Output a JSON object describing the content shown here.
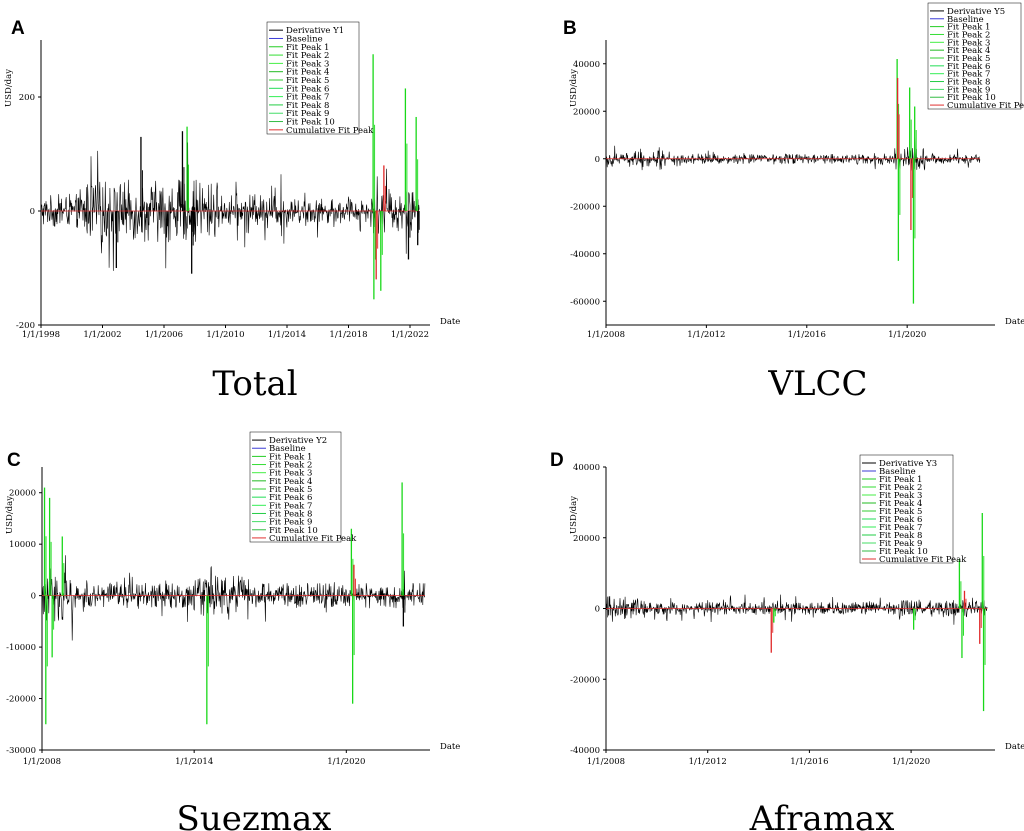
{
  "chart_data": [
    {
      "type": "line",
      "panel_letter": "A",
      "caption": "Total",
      "ylabel": "USD/day",
      "xlabel": "Date",
      "x_range": [
        1998.0,
        2023.3
      ],
      "ylim": [
        -200,
        300
      ],
      "y_ticks": [
        -200,
        0,
        200
      ],
      "x_ticks": [
        {
          "value": 1998,
          "label": "1/1/1998"
        },
        {
          "value": 2002,
          "label": "1/1/2002"
        },
        {
          "value": 2006,
          "label": "1/1/2006"
        },
        {
          "value": 2010,
          "label": "1/1/2010"
        },
        {
          "value": 2014,
          "label": "1/1/2014"
        },
        {
          "value": 2018,
          "label": "1/1/2018"
        },
        {
          "value": 2022,
          "label": "1/1/2022"
        }
      ],
      "legend": [
        "Derivative Y1",
        "Baseline",
        "Fit Peak 1",
        "Fit Peak 2",
        "Fit Peak 3",
        "Fit Peak 4",
        "Fit Peak 5",
        "Fit Peak 6",
        "Fit Peak 7",
        "Fit Peak 8",
        "Fit Peak 9",
        "Fit Peak 10",
        "Cumulative Fit Peak"
      ],
      "series_colors": [
        "#000000",
        "#3b3bd6",
        "#22cc22",
        "#33dd33",
        "#44ee44",
        "#22bb22",
        "#33cc33",
        "#22dd55",
        "#33ee55",
        "#22cc44",
        "#44dd66",
        "#33bb44",
        "#e03030"
      ],
      "data_end": 2022.6,
      "noise_segments": [
        {
          "start": 1998.0,
          "end": 2000.5,
          "amp": 30
        },
        {
          "start": 2000.5,
          "end": 2009.5,
          "amp": 55
        },
        {
          "start": 2009.5,
          "end": 2014.0,
          "amp": 30
        },
        {
          "start": 2014.0,
          "end": 2019.5,
          "amp": 22
        },
        {
          "start": 2019.5,
          "end": 2022.6,
          "amp": 40
        }
      ],
      "peaks": [
        {
          "x": 2007.5,
          "y": 148,
          "color": "green"
        },
        {
          "x": 2007.2,
          "y": 140,
          "color": "black"
        },
        {
          "x": 2004.5,
          "y": 130,
          "color": "black"
        },
        {
          "x": 2007.8,
          "y": -110,
          "color": "black"
        },
        {
          "x": 2002.9,
          "y": -100,
          "color": "black"
        },
        {
          "x": 2019.6,
          "y": 275,
          "color": "green"
        },
        {
          "x": 2019.65,
          "y": -155,
          "color": "green"
        },
        {
          "x": 2019.8,
          "y": -120,
          "color": "red"
        },
        {
          "x": 2020.1,
          "y": -140,
          "color": "green"
        },
        {
          "x": 2020.3,
          "y": 80,
          "color": "red"
        },
        {
          "x": 2021.7,
          "y": 215,
          "color": "green"
        },
        {
          "x": 2021.9,
          "y": -85,
          "color": "black"
        },
        {
          "x": 2022.4,
          "y": 165,
          "color": "green"
        },
        {
          "x": 2022.5,
          "y": -60,
          "color": "black"
        }
      ]
    },
    {
      "type": "line",
      "panel_letter": "B",
      "caption": "VLCC",
      "ylabel": "USD/day",
      "xlabel": "Date",
      "x_range": [
        2008.0,
        2023.5
      ],
      "ylim": [
        -70000,
        50000
      ],
      "y_ticks": [
        -60000,
        -40000,
        -20000,
        0,
        20000,
        40000
      ],
      "x_ticks": [
        {
          "value": 2008,
          "label": "1/1/2008"
        },
        {
          "value": 2012,
          "label": "1/1/2012"
        },
        {
          "value": 2016,
          "label": "1/1/2016"
        },
        {
          "value": 2020,
          "label": "1/1/2020"
        }
      ],
      "legend": [
        "Derivative Y5",
        "Baseline",
        "Fit Peak 1",
        "Fit Peak 2",
        "Fit Peak 3",
        "Fit Peak 4",
        "Fit Peak 5",
        "Fit Peak 6",
        "Fit Peak 7",
        "Fit Peak 8",
        "Fit Peak 9",
        "Fit Peak 10",
        "Cumulative Fit Peak"
      ],
      "series_colors": [
        "#000000",
        "#3b3bd6",
        "#22cc22",
        "#33dd33",
        "#44ee44",
        "#22bb22",
        "#33cc33",
        "#22dd55",
        "#33ee55",
        "#22cc44",
        "#44dd66",
        "#33bb44",
        "#e03030"
      ],
      "data_end": 2022.9,
      "noise_segments": [
        {
          "start": 2008.0,
          "end": 2011.0,
          "amp": 3500
        },
        {
          "start": 2011.0,
          "end": 2019.5,
          "amp": 2200
        },
        {
          "start": 2019.5,
          "end": 2020.7,
          "amp": 5000
        },
        {
          "start": 2020.7,
          "end": 2022.9,
          "amp": 2200
        }
      ],
      "peaks": [
        {
          "x": 2019.6,
          "y": 42000,
          "color": "green"
        },
        {
          "x": 2019.62,
          "y": 34000,
          "color": "red"
        },
        {
          "x": 2019.65,
          "y": -43000,
          "color": "green"
        },
        {
          "x": 2020.1,
          "y": 30000,
          "color": "green"
        },
        {
          "x": 2020.15,
          "y": -30000,
          "color": "red"
        },
        {
          "x": 2020.25,
          "y": -61000,
          "color": "green"
        },
        {
          "x": 2020.3,
          "y": 22000,
          "color": "green"
        }
      ]
    },
    {
      "type": "line",
      "panel_letter": "C",
      "caption": "Suezmax",
      "ylabel": "USD/day",
      "xlabel": "Date",
      "x_range": [
        2008.0,
        2023.3
      ],
      "ylim": [
        -30000,
        25000
      ],
      "y_ticks": [
        -30000,
        -20000,
        -10000,
        0,
        10000,
        20000
      ],
      "x_ticks": [
        {
          "value": 2008,
          "label": "1/1/2008"
        },
        {
          "value": 2014,
          "label": "1/1/2014"
        },
        {
          "value": 2020,
          "label": "1/1/2020"
        }
      ],
      "legend": [
        "Derivative Y2",
        "Baseline",
        "Fit Peak 1",
        "Fit Peak 2",
        "Fit Peak 3",
        "Fit Peak 4",
        "Fit Peak 5",
        "Fit Peak 6",
        "Fit Peak 7",
        "Fit Peak 8",
        "Fit Peak 9",
        "Fit Peak 10",
        "Cumulative Fit Peak"
      ],
      "series_colors": [
        "#000000",
        "#3b3bd6",
        "#22cc22",
        "#33dd33",
        "#44ee44",
        "#22bb22",
        "#33cc33",
        "#22dd55",
        "#33ee55",
        "#22cc44",
        "#44dd66",
        "#33bb44",
        "#e03030"
      ],
      "data_end": 2023.1,
      "noise_segments": [
        {
          "start": 2008.0,
          "end": 2009.3,
          "amp": 5000
        },
        {
          "start": 2009.3,
          "end": 2014.0,
          "amp": 2500
        },
        {
          "start": 2014.0,
          "end": 2016.0,
          "amp": 4000
        },
        {
          "start": 2016.0,
          "end": 2023.1,
          "amp": 2500
        }
      ],
      "peaks": [
        {
          "x": 2008.1,
          "y": 21000,
          "color": "green"
        },
        {
          "x": 2008.15,
          "y": -25000,
          "color": "green"
        },
        {
          "x": 2008.3,
          "y": 19000,
          "color": "green"
        },
        {
          "x": 2008.4,
          "y": -12000,
          "color": "green"
        },
        {
          "x": 2008.8,
          "y": 11500,
          "color": "green"
        },
        {
          "x": 2014.5,
          "y": -25000,
          "color": "green"
        },
        {
          "x": 2020.2,
          "y": 13000,
          "color": "green"
        },
        {
          "x": 2020.25,
          "y": -21000,
          "color": "green"
        },
        {
          "x": 2020.3,
          "y": 6000,
          "color": "red"
        },
        {
          "x": 2022.2,
          "y": 22000,
          "color": "green"
        },
        {
          "x": 2022.25,
          "y": -6000,
          "color": "black"
        }
      ]
    },
    {
      "type": "line",
      "panel_letter": "D",
      "caption": "Aframax",
      "ylabel": "USD/day",
      "xlabel": "Date",
      "x_range": [
        2008.0,
        2023.3
      ],
      "ylim": [
        -40000,
        40000
      ],
      "y_ticks": [
        -40000,
        -20000,
        0,
        20000,
        40000
      ],
      "x_ticks": [
        {
          "value": 2008,
          "label": "1/1/2008"
        },
        {
          "value": 2012,
          "label": "1/1/2012"
        },
        {
          "value": 2016,
          "label": "1/1/2016"
        },
        {
          "value": 2020,
          "label": "1/1/2020"
        }
      ],
      "legend": [
        "Derivative Y3",
        "Baseline",
        "Fit Peak 1",
        "Fit Peak 2",
        "Fit Peak 3",
        "Fit Peak 4",
        "Fit Peak 5",
        "Fit Peak 6",
        "Fit Peak 7",
        "Fit Peak 8",
        "Fit Peak 9",
        "Fit Peak 10",
        "Cumulative Fit Peak"
      ],
      "series_colors": [
        "#000000",
        "#3b3bd6",
        "#22cc22",
        "#33dd33",
        "#44ee44",
        "#22bb22",
        "#33cc33",
        "#22dd55",
        "#33ee55",
        "#22cc44",
        "#44dd66",
        "#33bb44",
        "#e03030"
      ],
      "data_end": 2023.0,
      "noise_segments": [
        {
          "start": 2008.0,
          "end": 2009.5,
          "amp": 3500
        },
        {
          "start": 2009.5,
          "end": 2019.5,
          "amp": 1800
        },
        {
          "start": 2019.5,
          "end": 2023.0,
          "amp": 2500
        }
      ],
      "peaks": [
        {
          "x": 2014.5,
          "y": -12500,
          "color": "red"
        },
        {
          "x": 2014.6,
          "y": -4000,
          "color": "green"
        },
        {
          "x": 2020.1,
          "y": -6000,
          "color": "green"
        },
        {
          "x": 2021.9,
          "y": 14000,
          "color": "green"
        },
        {
          "x": 2022.0,
          "y": -14000,
          "color": "green"
        },
        {
          "x": 2022.1,
          "y": 5000,
          "color": "red"
        },
        {
          "x": 2022.8,
          "y": 27000,
          "color": "green"
        },
        {
          "x": 2022.85,
          "y": -29000,
          "color": "green"
        },
        {
          "x": 2022.7,
          "y": -10000,
          "color": "red"
        }
      ]
    }
  ]
}
